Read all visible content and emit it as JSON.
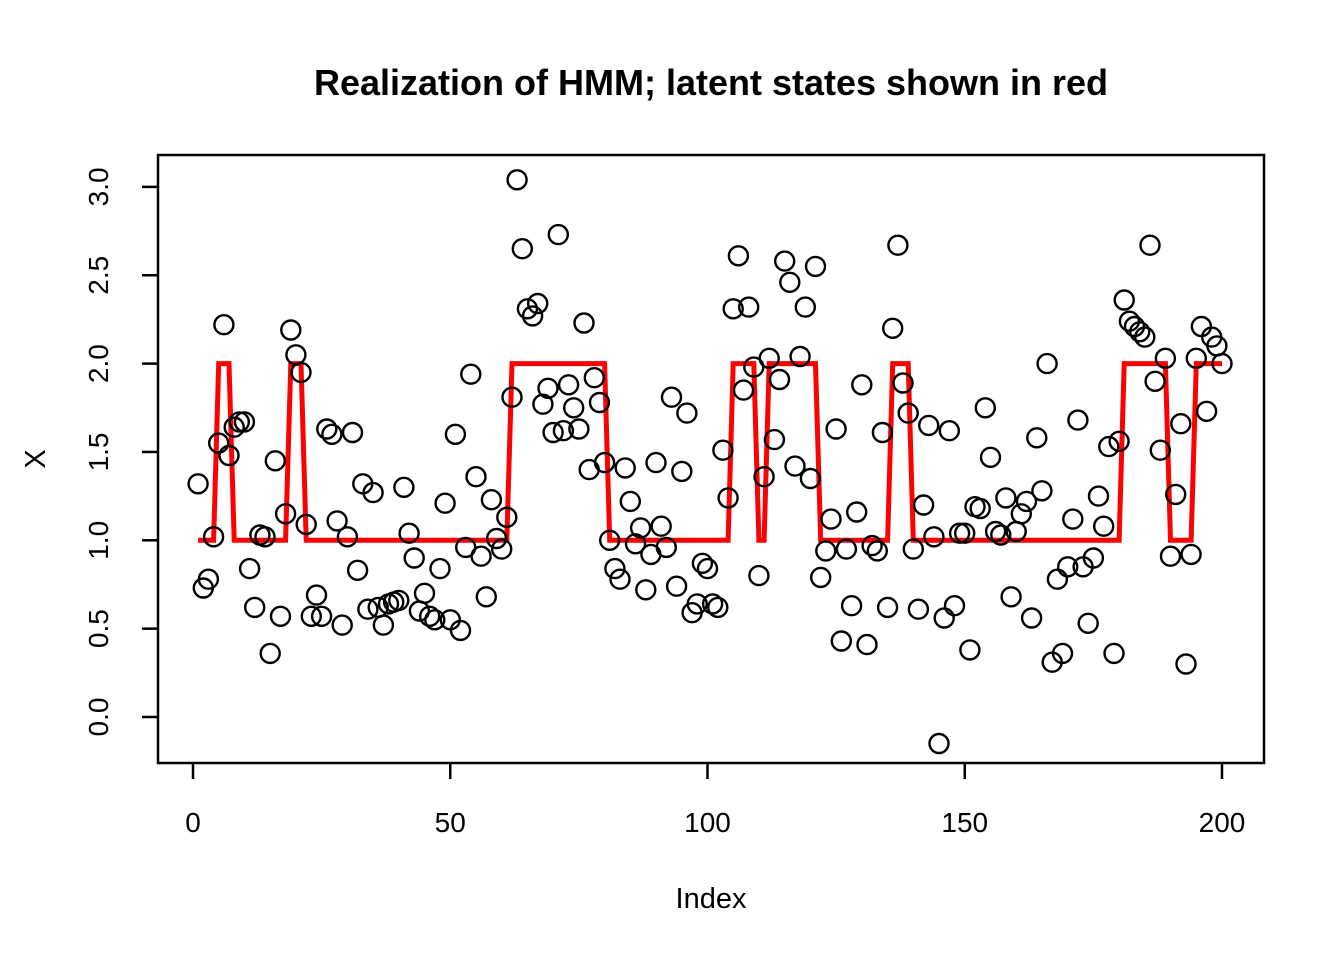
{
  "chart_data": {
    "type": "scatter",
    "title": "Realization of HMM; latent states shown in red",
    "xlabel": "Index",
    "ylabel": "X",
    "x_ticks": [
      "0",
      "50",
      "100",
      "150",
      "200"
    ],
    "y_ticks": [
      "0.0",
      "0.5",
      "1.0",
      "1.5",
      "2.0",
      "2.5",
      "3.0"
    ],
    "xlim": [
      -7,
      208
    ],
    "ylim": [
      -0.28,
      3.19
    ],
    "grid": false,
    "legend": "none",
    "n_points": 200,
    "x_start": 1,
    "point_style": {
      "shape": "open-circle",
      "color": "#000000"
    },
    "y_values": [
      1.32,
      0.73,
      0.78,
      1.02,
      1.55,
      2.22,
      1.48,
      1.64,
      1.67,
      1.67,
      0.84,
      0.62,
      1.03,
      1.02,
      0.36,
      1.45,
      0.57,
      1.15,
      2.19,
      2.05,
      1.95,
      1.09,
      0.57,
      0.69,
      0.57,
      1.63,
      1.6,
      1.11,
      0.52,
      1.02,
      1.61,
      0.83,
      1.32,
      0.61,
      1.27,
      0.62,
      0.52,
      0.64,
      0.65,
      0.66,
      1.3,
      1.04,
      0.9,
      0.6,
      0.7,
      0.57,
      0.55,
      0.84,
      1.21,
      0.55,
      1.6,
      0.49,
      0.96,
      1.94,
      1.36,
      0.91,
      0.68,
      1.23,
      1.01,
      0.95,
      1.13,
      1.81,
      3.04,
      2.65,
      2.31,
      2.27,
      2.34,
      1.77,
      1.86,
      1.61,
      2.73,
      1.62,
      1.88,
      1.75,
      1.63,
      2.23,
      1.4,
      1.92,
      1.78,
      1.44,
      1.0,
      0.84,
      0.78,
      1.41,
      1.22,
      0.98,
      1.07,
      0.72,
      0.92,
      1.44,
      1.08,
      0.96,
      1.81,
      0.74,
      1.39,
      1.72,
      0.59,
      0.64,
      0.87,
      0.84,
      0.64,
      0.62,
      1.51,
      1.24,
      2.31,
      2.61,
      1.85,
      2.32,
      1.98,
      0.8,
      1.36,
      2.03,
      1.57,
      1.91,
      2.58,
      2.46,
      1.42,
      2.04,
      2.32,
      1.35,
      2.55,
      0.79,
      0.94,
      1.12,
      1.63,
      0.43,
      0.95,
      0.63,
      1.16,
      1.88,
      0.41,
      0.97,
      0.94,
      1.61,
      0.62,
      2.2,
      2.67,
      1.89,
      1.72,
      0.95,
      0.61,
      1.2,
      1.65,
      1.02,
      -0.15,
      0.56,
      1.62,
      0.63,
      1.04,
      1.04,
      0.38,
      1.19,
      1.18,
      1.75,
      1.47,
      1.05,
      1.03,
      1.24,
      0.68,
      1.05,
      1.15,
      1.22,
      0.56,
      1.58,
      1.28,
      2.0,
      0.31,
      0.78,
      0.36,
      0.85,
      1.12,
      1.68,
      0.85,
      0.53,
      0.9,
      1.25,
      1.08,
      1.53,
      0.36,
      1.56,
      2.36,
      2.24,
      2.21,
      2.18,
      2.15,
      2.67,
      1.9,
      1.51,
      2.03,
      0.91,
      1.26,
      1.66,
      0.3,
      0.92,
      2.03,
      2.21,
      1.73,
      2.15,
      2.1,
      2.0
    ],
    "latent_states": {
      "description": "hidden state sequence drawn as red step-like line at levels 1 and 2",
      "line_color": "#FF0000",
      "levels": [
        1,
        2
      ],
      "segments": [
        {
          "from": 1,
          "to": 4,
          "state": 1
        },
        {
          "from": 5,
          "to": 7,
          "state": 2
        },
        {
          "from": 8,
          "to": 18,
          "state": 1
        },
        {
          "from": 19,
          "to": 21,
          "state": 2
        },
        {
          "from": 22,
          "to": 61,
          "state": 1
        },
        {
          "from": 62,
          "to": 80,
          "state": 2
        },
        {
          "from": 81,
          "to": 104,
          "state": 1
        },
        {
          "from": 105,
          "to": 109,
          "state": 2
        },
        {
          "from": 110,
          "to": 111,
          "state": 1
        },
        {
          "from": 112,
          "to": 121,
          "state": 2
        },
        {
          "from": 122,
          "to": 135,
          "state": 1
        },
        {
          "from": 136,
          "to": 139,
          "state": 2
        },
        {
          "from": 140,
          "to": 180,
          "state": 1
        },
        {
          "from": 181,
          "to": 189,
          "state": 2
        },
        {
          "from": 190,
          "to": 194,
          "state": 1
        },
        {
          "from": 195,
          "to": 200,
          "state": 2
        }
      ]
    },
    "colors": {
      "background": "#ffffff",
      "frame": "#000000",
      "points": "#000000",
      "state_line": "#FF0000"
    }
  }
}
